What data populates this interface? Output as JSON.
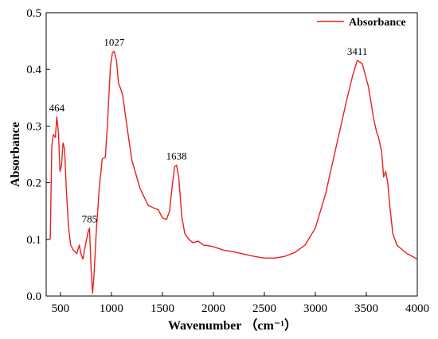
{
  "chart_data": {
    "type": "line",
    "xlabel": "Wavenumber （cm⁻¹）",
    "ylabel": "Absorbance",
    "xlim": [
      360,
      4000
    ],
    "ylim": [
      0.0,
      0.5
    ],
    "x_ticks": [
      500,
      1000,
      1500,
      2000,
      2500,
      3000,
      3500,
      4000
    ],
    "y_ticks": [
      0.0,
      0.1,
      0.2,
      0.3,
      0.4,
      0.5
    ],
    "x_tick_labels": [
      "500",
      "1000",
      "1500",
      "2000",
      "2500",
      "3000",
      "3500",
      "4000"
    ],
    "y_tick_labels": [
      "0.0",
      "0.1",
      "0.2",
      "0.3",
      "0.4",
      "0.5"
    ],
    "grid": false,
    "legend_position": "top-right",
    "series": [
      {
        "name": "Absorbance",
        "color": "#e8201b",
        "x": [
          400,
          415,
          430,
          450,
          464,
          480,
          495,
          510,
          525,
          540,
          560,
          580,
          600,
          630,
          660,
          685,
          700,
          720,
          745,
          770,
          785,
          800,
          815,
          830,
          850,
          880,
          910,
          940,
          960,
          990,
          1010,
          1027,
          1050,
          1070,
          1090,
          1110,
          1140,
          1200,
          1280,
          1360,
          1420,
          1460,
          1500,
          1540,
          1570,
          1600,
          1620,
          1638,
          1660,
          1690,
          1720,
          1760,
          1800,
          1850,
          1900,
          1950,
          2000,
          2100,
          2200,
          2300,
          2400,
          2500,
          2600,
          2700,
          2800,
          2900,
          3000,
          3100,
          3200,
          3300,
          3360,
          3411,
          3460,
          3520,
          3570,
          3600,
          3620,
          3650,
          3670,
          3690,
          3710,
          3730,
          3760,
          3800,
          3850,
          3900,
          3950,
          4000
        ],
        "y": [
          0.1,
          0.265,
          0.285,
          0.28,
          0.316,
          0.29,
          0.22,
          0.23,
          0.27,
          0.26,
          0.18,
          0.12,
          0.09,
          0.08,
          0.075,
          0.09,
          0.075,
          0.065,
          0.09,
          0.112,
          0.12,
          0.05,
          0.005,
          0.04,
          0.11,
          0.19,
          0.242,
          0.245,
          0.3,
          0.405,
          0.43,
          0.432,
          0.415,
          0.375,
          0.366,
          0.355,
          0.315,
          0.24,
          0.19,
          0.16,
          0.155,
          0.152,
          0.138,
          0.135,
          0.15,
          0.2,
          0.228,
          0.231,
          0.21,
          0.14,
          0.11,
          0.1,
          0.094,
          0.097,
          0.09,
          0.089,
          0.087,
          0.081,
          0.078,
          0.074,
          0.07,
          0.067,
          0.067,
          0.07,
          0.077,
          0.09,
          0.12,
          0.18,
          0.26,
          0.34,
          0.385,
          0.416,
          0.41,
          0.37,
          0.315,
          0.29,
          0.28,
          0.255,
          0.21,
          0.22,
          0.2,
          0.16,
          0.11,
          0.09,
          0.082,
          0.075,
          0.07,
          0.065
        ]
      }
    ],
    "annotations": [
      {
        "text": "464",
        "x": 464,
        "y": 0.316
      },
      {
        "text": "785",
        "x": 785,
        "y": 0.12
      },
      {
        "text": "1027",
        "x": 1027,
        "y": 0.432
      },
      {
        "text": "1638",
        "x": 1638,
        "y": 0.231
      },
      {
        "text": "3411",
        "x": 3411,
        "y": 0.416
      }
    ]
  }
}
